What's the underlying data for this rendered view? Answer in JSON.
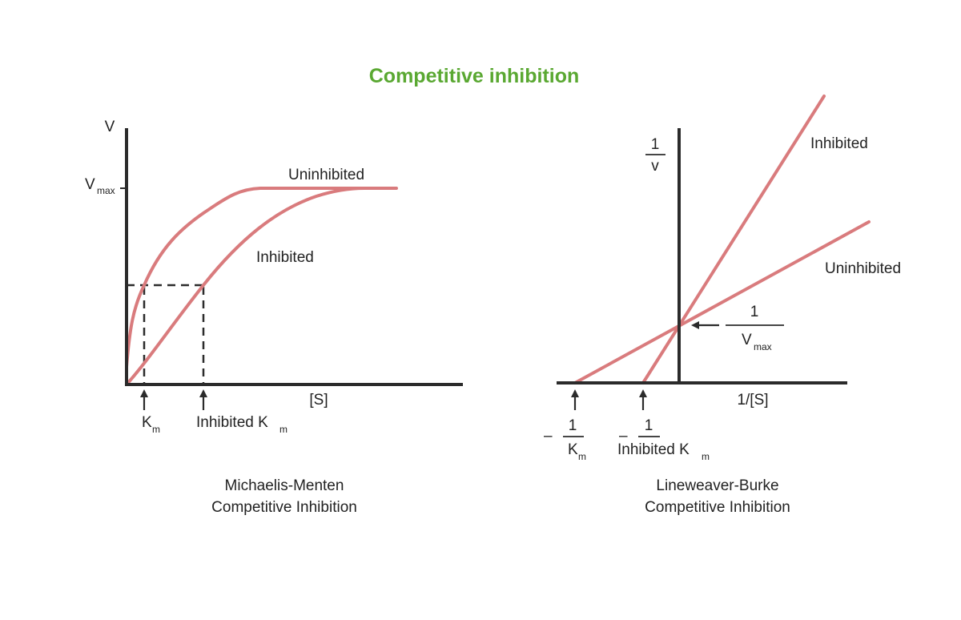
{
  "title": "Competitive inhibition",
  "colors": {
    "title": "#5aa832",
    "curve": "#d97b7d",
    "axis": "#2b2b2b"
  },
  "mm": {
    "y_axis_label": "V",
    "vmax_label": {
      "main": "V",
      "sub": "max"
    },
    "x_axis_label": "[S]",
    "uninhibited_label": "Uninhibited",
    "inhibited_label": "Inhibited",
    "km_label": {
      "main": "K",
      "sub": "m"
    },
    "inhibited_km_label": {
      "main": "Inhibited K",
      "sub": "m"
    },
    "caption": [
      "Michaelis-Menten",
      "Competitive Inhibition"
    ]
  },
  "lb": {
    "y_axis_label": {
      "num": "1",
      "den": "v"
    },
    "x_axis_label": "1/[S]",
    "inhibited_label": "Inhibited",
    "uninhibited_label": "Uninhibited",
    "intercept_label": {
      "num": "1",
      "den_main": "V",
      "den_sub": "max"
    },
    "neg_km_label": {
      "sign": "–",
      "num": "1",
      "den_main": "K",
      "den_sub": "m"
    },
    "neg_inhibited_km_label": {
      "sign": "–",
      "num": "1",
      "den_main": "Inhibited K",
      "den_sub": "m"
    },
    "caption": [
      "Lineweaver-Burke",
      "Competitive Inhibition"
    ]
  }
}
